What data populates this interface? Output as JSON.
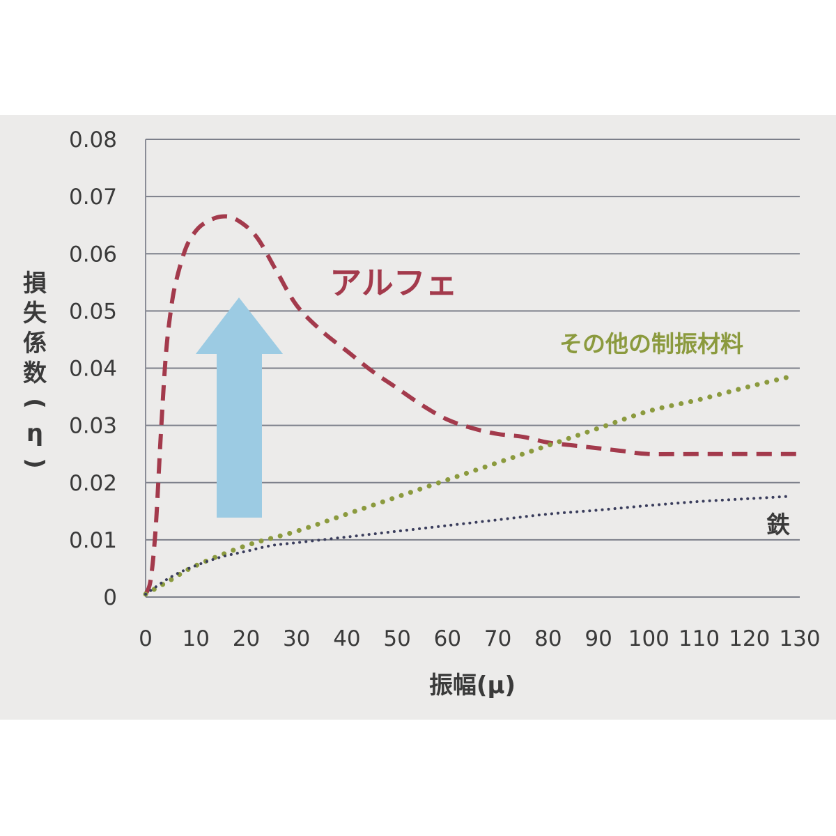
{
  "chart_data": {
    "type": "line",
    "title": "",
    "xlabel": "振幅(μ)",
    "ylabel": "損失係数(η)",
    "ylabel_chars": [
      "損",
      "失",
      "係",
      "数",
      "(",
      "η",
      ")"
    ],
    "xlim": [
      0,
      130
    ],
    "ylim": [
      0,
      0.08
    ],
    "x_ticks": [
      "0",
      "10",
      "20",
      "30",
      "40",
      "50",
      "60",
      "70",
      "80",
      "90",
      "100",
      "110",
      "120",
      "130"
    ],
    "y_ticks": [
      "0",
      "0.01",
      "0.02",
      "0.03",
      "0.04",
      "0.05",
      "0.06",
      "0.07",
      "0.08"
    ],
    "x_tick_values": [
      0,
      10,
      20,
      30,
      40,
      50,
      60,
      70,
      80,
      90,
      100,
      110,
      120,
      130
    ],
    "y_tick_values": [
      0,
      0.01,
      0.02,
      0.03,
      0.04,
      0.05,
      0.06,
      0.07,
      0.08
    ],
    "grid": "horizontal",
    "series": [
      {
        "name": "アルフェ",
        "color": "#a33a4c",
        "style": "dashed",
        "x": [
          0,
          1,
          2,
          3,
          4,
          5,
          6,
          8,
          10,
          12,
          15,
          18,
          22,
          26,
          30,
          35,
          40,
          45,
          50,
          55,
          60,
          65,
          70,
          75,
          80,
          85,
          90,
          95,
          100,
          110,
          120,
          130
        ],
        "y": [
          0.0005,
          0.003,
          0.012,
          0.028,
          0.042,
          0.05,
          0.055,
          0.061,
          0.064,
          0.0655,
          0.0665,
          0.066,
          0.063,
          0.057,
          0.051,
          0.0465,
          0.043,
          0.0395,
          0.0365,
          0.0335,
          0.031,
          0.0295,
          0.0285,
          0.028,
          0.027,
          0.0265,
          0.026,
          0.0255,
          0.025,
          0.025,
          0.025,
          0.025
        ]
      },
      {
        "name": "その他の制振材料",
        "color": "#8b9a3e",
        "style": "dotted",
        "x": [
          0,
          5,
          10,
          20,
          30,
          40,
          50,
          60,
          70,
          80,
          90,
          100,
          110,
          120,
          128
        ],
        "y": [
          0.0005,
          0.003,
          0.0055,
          0.009,
          0.0115,
          0.0145,
          0.0175,
          0.0205,
          0.0235,
          0.0265,
          0.0295,
          0.0325,
          0.0345,
          0.0368,
          0.0385
        ]
      },
      {
        "name": "鉄",
        "color": "#3a3d5c",
        "style": "dotted-fine",
        "x": [
          0,
          5,
          10,
          15,
          20,
          25,
          30,
          40,
          50,
          60,
          70,
          80,
          90,
          100,
          110,
          120,
          128
        ],
        "y": [
          0.0005,
          0.0035,
          0.0055,
          0.007,
          0.008,
          0.009,
          0.0095,
          0.0105,
          0.0115,
          0.0125,
          0.0135,
          0.0145,
          0.0152,
          0.016,
          0.0167,
          0.0172,
          0.0176
        ]
      }
    ],
    "annotations": {
      "arrow_color": "#9ccbe3"
    }
  }
}
